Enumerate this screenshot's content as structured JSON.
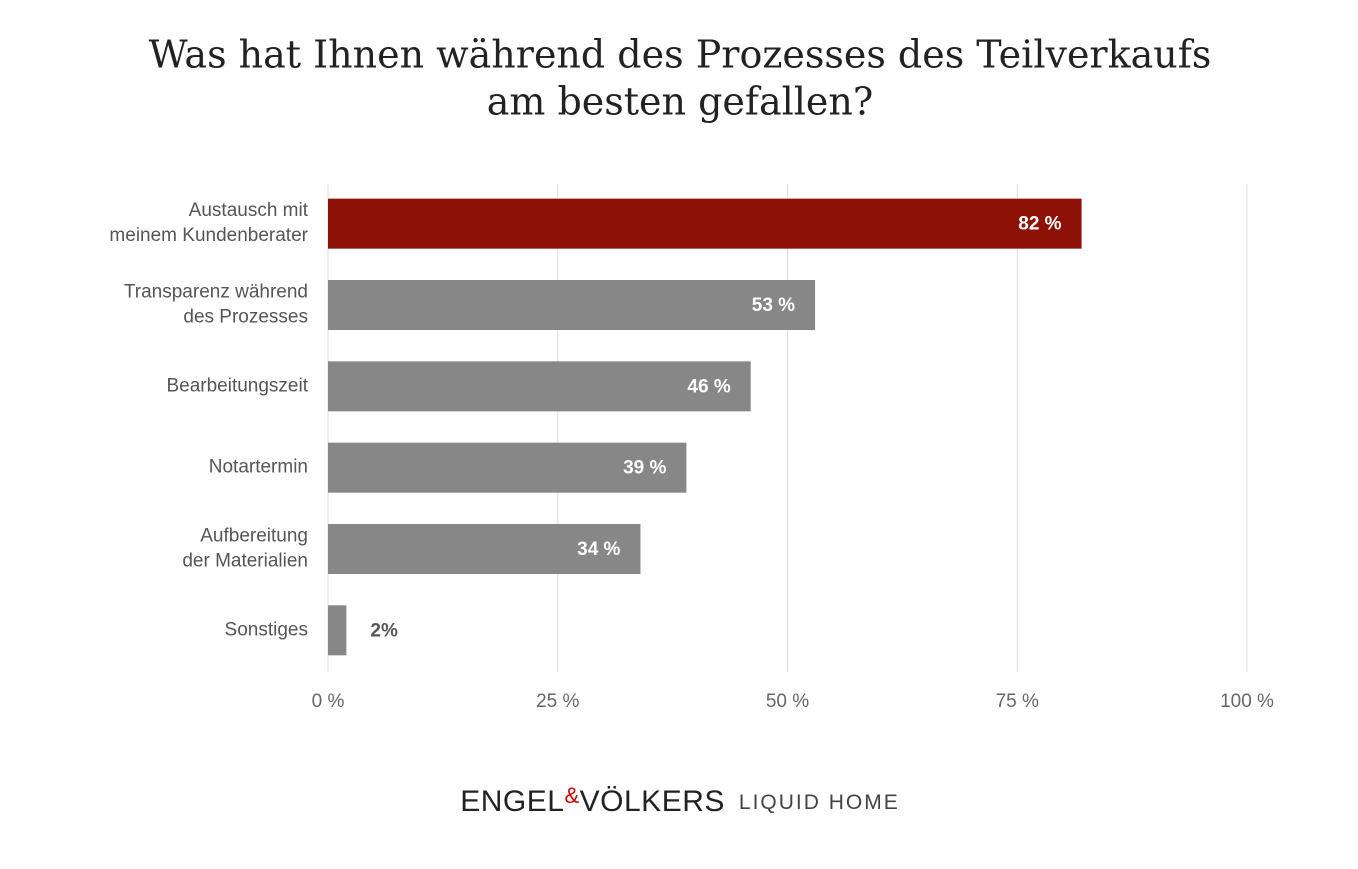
{
  "chart_data": {
    "type": "hbar",
    "title": [
      "Was hat Ihnen während des Prozesses des Teilverkaufs",
      "am besten gefallen?"
    ],
    "categories": [
      [
        "Austausch mit",
        "meinem Kundenberater"
      ],
      [
        "Transparenz während",
        "des Prozesses"
      ],
      [
        "Bearbeitungszeit"
      ],
      [
        "Notartermin"
      ],
      [
        "Aufbereitung",
        "der Materialien"
      ],
      [
        "Sonstiges"
      ]
    ],
    "values": [
      82,
      53,
      46,
      39,
      34,
      2
    ],
    "value_labels": [
      "82 %",
      "53 %",
      "46 %",
      "39 %",
      "34 %",
      "2%"
    ],
    "colors": [
      "#8e1108",
      "#878787",
      "#878787",
      "#878787",
      "#878787",
      "#878787"
    ],
    "xlim": [
      0,
      100
    ],
    "xticks": [
      {
        "value": 0,
        "label": "0 %"
      },
      {
        "value": 25,
        "label": "25 %"
      },
      {
        "value": 50,
        "label": "50 %"
      },
      {
        "value": 75,
        "label": "75 %"
      },
      {
        "value": 100,
        "label": "100 %"
      }
    ],
    "grid": true
  },
  "footer": {
    "brand_left": "ENGEL",
    "ampersand": "&",
    "brand_right": "VÖLKERS",
    "sub": "LIQUID HOME"
  }
}
